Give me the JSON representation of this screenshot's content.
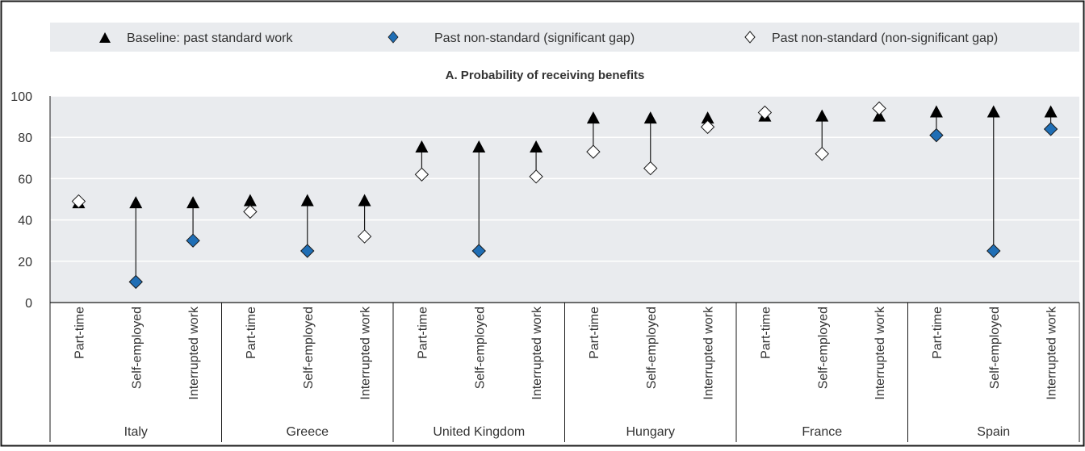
{
  "legend": {
    "baseline": "Baseline: past standard work",
    "significant": "Past non-standard (significant gap)",
    "nonsignificant": "Past non-standard (non-significant gap)"
  },
  "colors": {
    "panel_background": "#e9ebee",
    "baseline_marker": "#000000",
    "significant_marker": "#1f6eb5",
    "nonsignificant_marker": "#ffffff"
  },
  "chart_data": {
    "type": "scatter",
    "title": "A. Probability of receiving benefits",
    "xlabel": "",
    "ylabel": "",
    "ylim": [
      0,
      100
    ],
    "yticks": [
      0,
      20,
      40,
      60,
      80,
      100
    ],
    "grid": true,
    "legend_position": "top",
    "groups": [
      {
        "country": "Italy",
        "items": [
          {
            "category": "Part-time",
            "baseline": 48,
            "non_standard": 49,
            "significant": false
          },
          {
            "category": "Self-employed",
            "baseline": 48,
            "non_standard": 10,
            "significant": true
          },
          {
            "category": "Interrupted work",
            "baseline": 48,
            "non_standard": 30,
            "significant": true
          }
        ]
      },
      {
        "country": "Greece",
        "items": [
          {
            "category": "Part-time",
            "baseline": 49,
            "non_standard": 44,
            "significant": false
          },
          {
            "category": "Self-employed",
            "baseline": 49,
            "non_standard": 25,
            "significant": true
          },
          {
            "category": "Interrupted work",
            "baseline": 49,
            "non_standard": 32,
            "significant": false
          }
        ]
      },
      {
        "country": "United Kingdom",
        "items": [
          {
            "category": "Part-time",
            "baseline": 75,
            "non_standard": 62,
            "significant": false
          },
          {
            "category": "Self-employed",
            "baseline": 75,
            "non_standard": 25,
            "significant": true
          },
          {
            "category": "Interrupted work",
            "baseline": 75,
            "non_standard": 61,
            "significant": false
          }
        ]
      },
      {
        "country": "Hungary",
        "items": [
          {
            "category": "Part-time",
            "baseline": 89,
            "non_standard": 73,
            "significant": false
          },
          {
            "category": "Self-employed",
            "baseline": 89,
            "non_standard": 65,
            "significant": false
          },
          {
            "category": "Interrupted work",
            "baseline": 89,
            "non_standard": 85,
            "significant": false
          }
        ]
      },
      {
        "country": "France",
        "items": [
          {
            "category": "Part-time",
            "baseline": 90,
            "non_standard": 92,
            "significant": false
          },
          {
            "category": "Self-employed",
            "baseline": 90,
            "non_standard": 72,
            "significant": false
          },
          {
            "category": "Interrupted work",
            "baseline": 90,
            "non_standard": 94,
            "significant": false
          }
        ]
      },
      {
        "country": "Spain",
        "items": [
          {
            "category": "Part-time",
            "baseline": 92,
            "non_standard": 81,
            "significant": true
          },
          {
            "category": "Self-employed",
            "baseline": 92,
            "non_standard": 25,
            "significant": true
          },
          {
            "category": "Interrupted work",
            "baseline": 92,
            "non_standard": 84,
            "significant": true
          }
        ]
      }
    ]
  }
}
